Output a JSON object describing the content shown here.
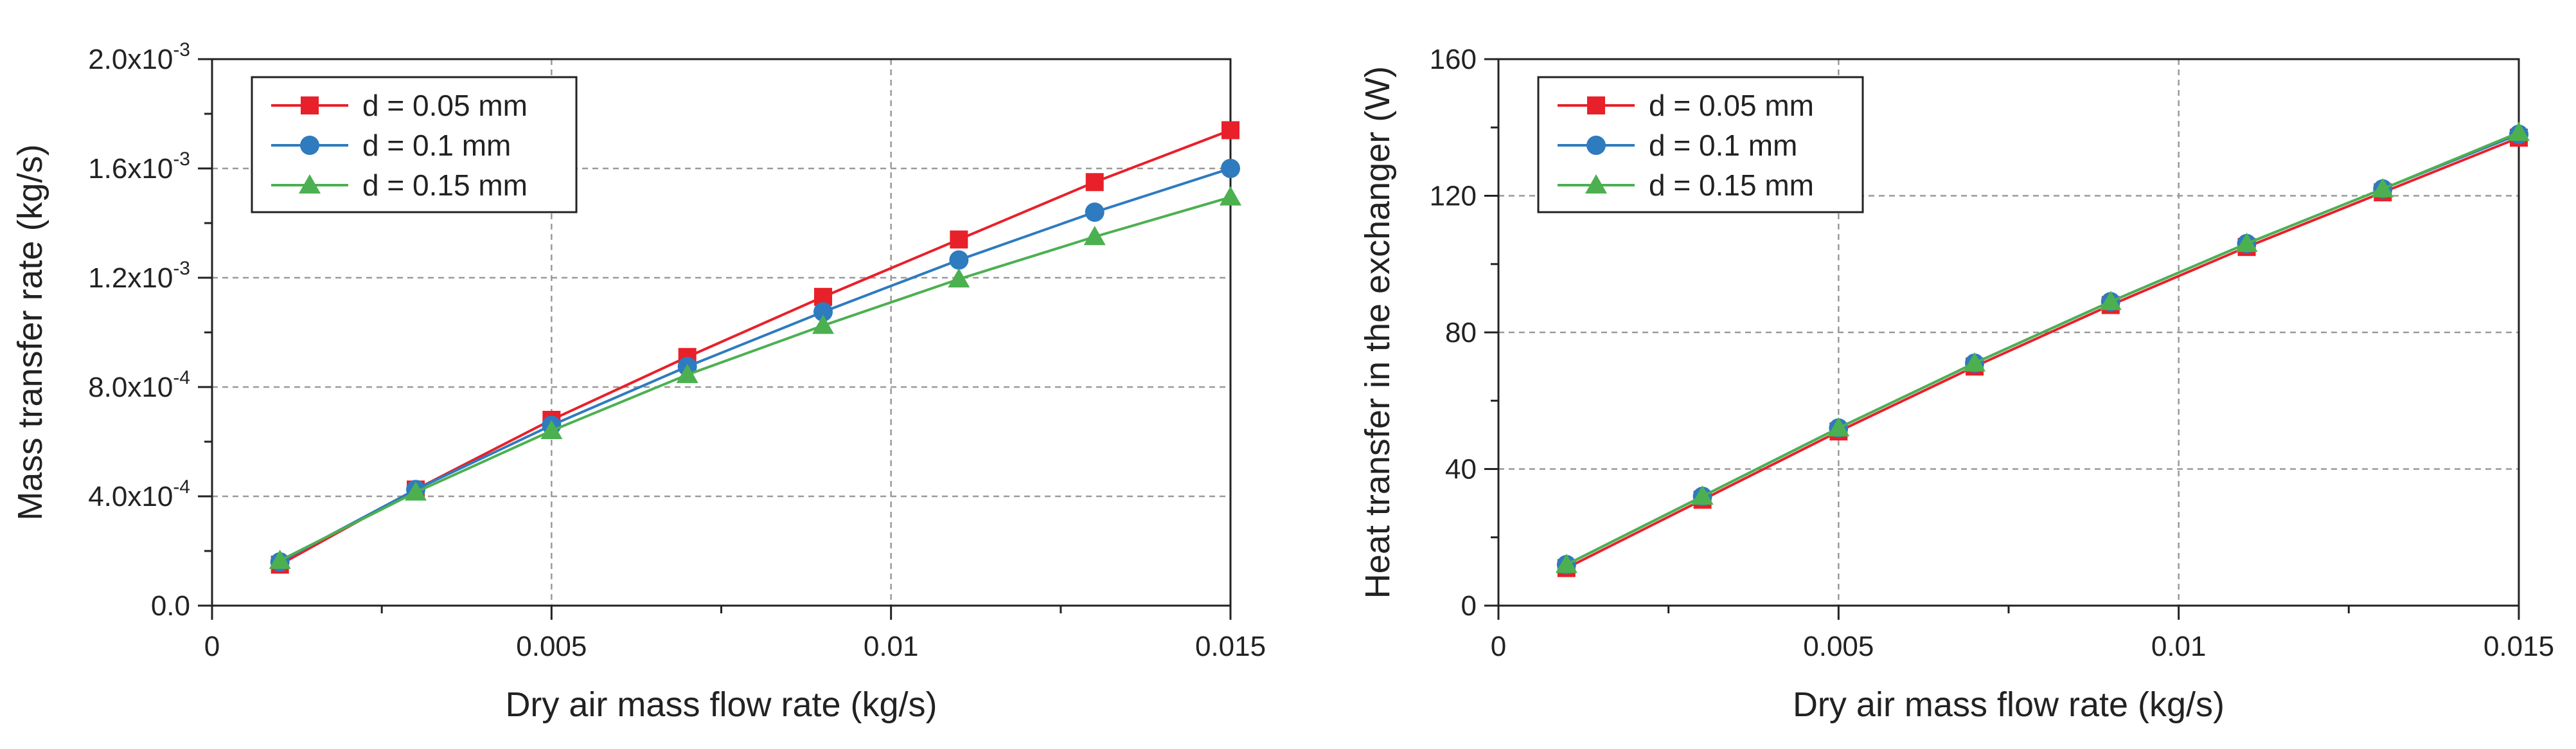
{
  "chart_data": [
    {
      "type": "line",
      "title": "",
      "xlabel": "Dry air mass flow rate (kg/s)",
      "ylabel": "Mass transfer rate (kg/s)",
      "xlim": [
        0,
        0.015
      ],
      "ylim": [
        0,
        0.002
      ],
      "grid": true,
      "legend_position": "top-left",
      "x_ticks": [
        {
          "value": 0,
          "label": "0"
        },
        {
          "value": 0.005,
          "label": "0.005"
        },
        {
          "value": 0.01,
          "label": "0.01"
        },
        {
          "value": 0.015,
          "label": "0.015"
        }
      ],
      "y_ticks": [
        {
          "value": 0,
          "mantissa": "0.0",
          "exponent": ""
        },
        {
          "value": 0.0004,
          "mantissa": "4.0x10",
          "exponent": "-4"
        },
        {
          "value": 0.0008,
          "mantissa": "8.0x10",
          "exponent": "-4"
        },
        {
          "value": 0.0012,
          "mantissa": "1.2x10",
          "exponent": "-3"
        },
        {
          "value": 0.0016,
          "mantissa": "1.6x10",
          "exponent": "-3"
        },
        {
          "value": 0.002,
          "mantissa": "2.0x10",
          "exponent": "-3"
        }
      ],
      "x": [
        0.001,
        0.003,
        0.005,
        0.007,
        0.009,
        0.011,
        0.013,
        0.015
      ],
      "series": [
        {
          "name": "d = 0.05 mm",
          "color": "#e8202a",
          "marker": "square",
          "values": [
            0.00015,
            0.000425,
            0.00068,
            0.00091,
            0.00113,
            0.00134,
            0.00155,
            0.00174
          ]
        },
        {
          "name": "d = 0.1 mm",
          "color": "#2e7bbf",
          "marker": "circle",
          "values": [
            0.00016,
            0.000425,
            0.00066,
            0.000875,
            0.001075,
            0.001265,
            0.00144,
            0.0016
          ]
        },
        {
          "name": "d = 0.15 mm",
          "color": "#4cb050",
          "marker": "triangle",
          "values": [
            0.000165,
            0.000415,
            0.00064,
            0.000845,
            0.001025,
            0.001195,
            0.00135,
            0.001495
          ]
        }
      ]
    },
    {
      "type": "line",
      "title": "",
      "xlabel": "Dry air mass flow rate (kg/s)",
      "ylabel": "Heat transfer in the exchanger (W)",
      "xlim": [
        0,
        0.015
      ],
      "ylim": [
        0,
        160
      ],
      "grid": true,
      "legend_position": "top-left",
      "x_ticks": [
        {
          "value": 0,
          "label": "0"
        },
        {
          "value": 0.005,
          "label": "0.005"
        },
        {
          "value": 0.01,
          "label": "0.01"
        },
        {
          "value": 0.015,
          "label": "0.015"
        }
      ],
      "y_ticks": [
        {
          "value": 0,
          "mantissa": "0",
          "exponent": ""
        },
        {
          "value": 40,
          "mantissa": "40",
          "exponent": ""
        },
        {
          "value": 80,
          "mantissa": "80",
          "exponent": ""
        },
        {
          "value": 120,
          "mantissa": "120",
          "exponent": ""
        },
        {
          "value": 160,
          "mantissa": "160",
          "exponent": ""
        }
      ],
      "x": [
        0.001,
        0.003,
        0.005,
        0.007,
        0.009,
        0.011,
        0.013,
        0.015
      ],
      "series": [
        {
          "name": "d = 0.05 mm",
          "color": "#e8202a",
          "marker": "square",
          "values": [
            11,
            31,
            51,
            70,
            88,
            105,
            121,
            137
          ]
        },
        {
          "name": "d = 0.1 mm",
          "color": "#2e7bbf",
          "marker": "circle",
          "values": [
            12,
            32,
            52,
            71,
            89,
            106,
            122,
            138
          ]
        },
        {
          "name": "d = 0.15 mm",
          "color": "#4cb050",
          "marker": "triangle",
          "values": [
            12,
            32,
            52,
            71,
            89,
            106,
            122,
            138.5
          ]
        }
      ]
    }
  ]
}
